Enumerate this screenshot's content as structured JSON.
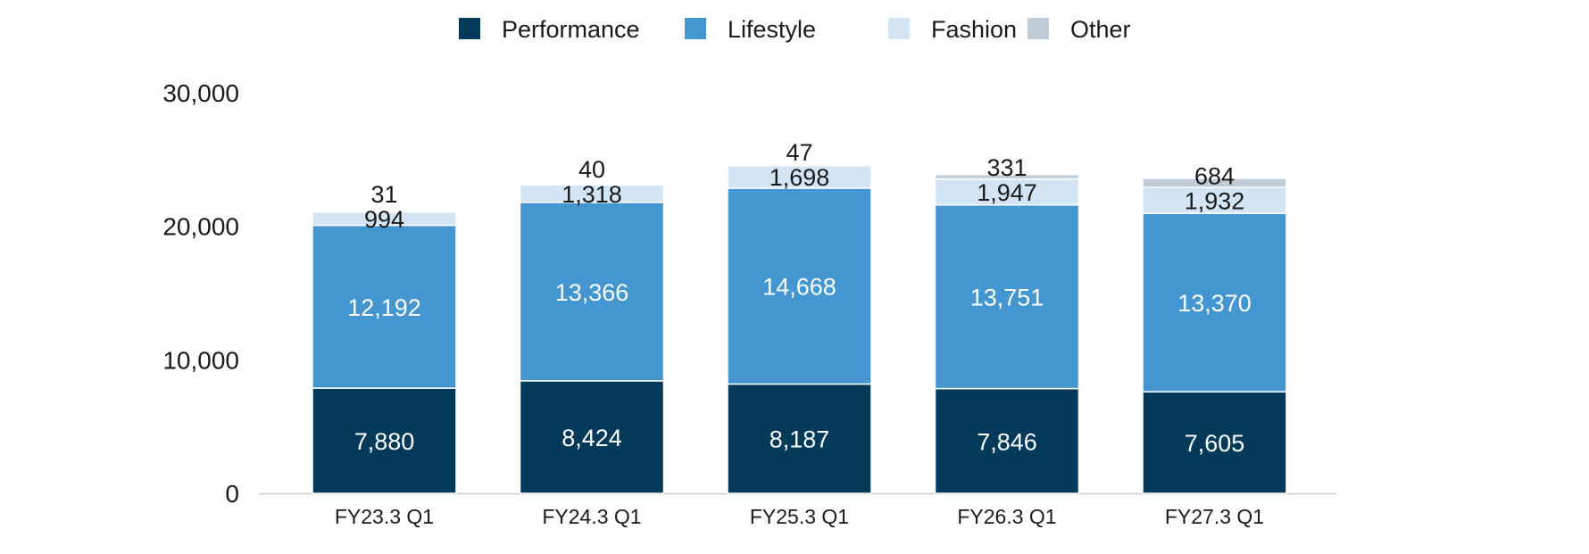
{
  "chart_data": {
    "type": "bar",
    "stacked": true,
    "title": "",
    "xlabel": "",
    "ylabel": "",
    "categories": [
      "FY23.3 Q1",
      "FY24.3 Q1",
      "FY25.3 Q1",
      "FY26.3 Q1",
      "FY27.3 Q1"
    ],
    "ylim": [
      0,
      30000
    ],
    "yticks": [
      0,
      10000,
      20000,
      30000
    ],
    "ytick_labels": [
      "0",
      "10,000",
      "20,000",
      "30,000"
    ],
    "grid": false,
    "legend_position": "top-center",
    "series": [
      {
        "name": "Performance",
        "color": "#033A5A",
        "values": [
          7880,
          8424,
          8187,
          7846,
          7605
        ],
        "labels": [
          "7,880",
          "8,424",
          "8,187",
          "7,846",
          "7,605"
        ]
      },
      {
        "name": "Lifestyle",
        "color": "#4396CF",
        "values": [
          12192,
          13366,
          14668,
          13751,
          13370
        ],
        "labels": [
          "12,192",
          "13,366",
          "14,668",
          "13,751",
          "13,370"
        ]
      },
      {
        "name": "Fashion",
        "color": "#D3E5F4",
        "values": [
          994,
          1318,
          1698,
          1947,
          1932
        ],
        "labels": [
          "994",
          "1,318",
          "1,698",
          "1,947",
          "1,932"
        ]
      },
      {
        "name": "Other",
        "color": "#BFCCD7",
        "values": [
          31,
          40,
          47,
          331,
          684
        ],
        "labels": [
          "31",
          "40",
          "47",
          "331",
          "684"
        ]
      }
    ]
  }
}
